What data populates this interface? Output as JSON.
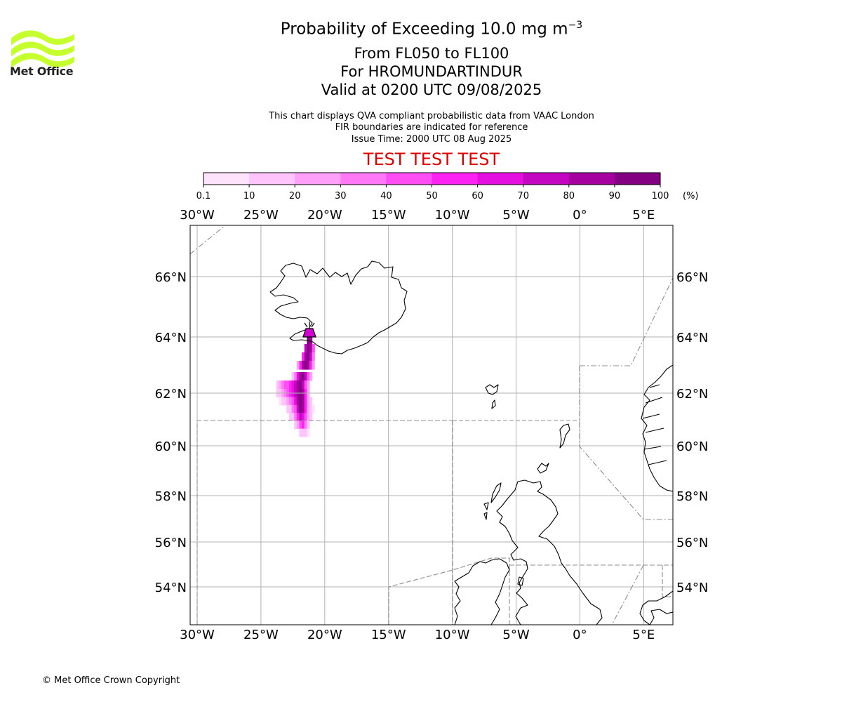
{
  "logo": {
    "text": "Met Office",
    "accent_color": "#c6ff2e"
  },
  "title": {
    "prefix": "Probability of Exceeding 10.0 mg m",
    "exponent": "−3"
  },
  "subtitle_lines": [
    "From FL050 to FL100",
    "For HROMUNDARTINDUR",
    "Valid at 0200 UTC 09/08/2025"
  ],
  "info_lines": [
    "This chart displays QVA compliant probabilistic data from VAAC London",
    "FIR boundaries are indicated for reference",
    "Issue Time: 2000 UTC 08 Aug 2025"
  ],
  "test_banner": "TEST TEST TEST",
  "copyright": "© Met Office Crown Copyright",
  "colorbar": {
    "ticks": [
      "0.1",
      "10",
      "20",
      "30",
      "40",
      "50",
      "60",
      "70",
      "80",
      "90",
      "100"
    ],
    "unit": "(%)",
    "colors": [
      "#ffe3fd",
      "#ffc4fb",
      "#ffa0f8",
      "#ff78f6",
      "#ff4df4",
      "#fb22f2",
      "#e40fe0",
      "#c405c1",
      "#a5009f",
      "#840083"
    ]
  },
  "map": {
    "lon_labels": [
      "30°W",
      "25°W",
      "20°W",
      "15°W",
      "10°W",
      "5°W",
      "0°",
      "5°E"
    ],
    "lat_labels": [
      "66°N",
      "64°N",
      "62°N",
      "60°N",
      "58°N",
      "56°N",
      "54°N"
    ],
    "volcano": "HROMUNDARTINDUR"
  },
  "chart_data": {
    "type": "heatmap",
    "title": "Probability of Exceeding 10.0 mg m−3",
    "legend_unit": "(%)",
    "legend_bins": [
      0.1,
      10,
      20,
      30,
      40,
      50,
      60,
      70,
      80,
      90,
      100
    ],
    "longitude_ticks": [
      -30,
      -25,
      -20,
      -15,
      -10,
      -5,
      0,
      5
    ],
    "latitude_ticks": [
      66,
      64,
      62,
      60,
      58,
      56,
      54
    ],
    "grid": true,
    "plume_cells": [
      {
        "lon": -21.3,
        "lat": 63.9,
        "p": 95
      },
      {
        "lon": -21.1,
        "lat": 63.9,
        "p": 85
      },
      {
        "lon": -21.5,
        "lat": 63.6,
        "p": 75
      },
      {
        "lon": -21.3,
        "lat": 63.6,
        "p": 95
      },
      {
        "lon": -21.1,
        "lat": 63.6,
        "p": 85
      },
      {
        "lon": -20.9,
        "lat": 63.6,
        "p": 40
      },
      {
        "lon": -21.7,
        "lat": 63.3,
        "p": 55
      },
      {
        "lon": -21.5,
        "lat": 63.3,
        "p": 85
      },
      {
        "lon": -21.3,
        "lat": 63.3,
        "p": 95
      },
      {
        "lon": -21.1,
        "lat": 63.3,
        "p": 75
      },
      {
        "lon": -20.9,
        "lat": 63.3,
        "p": 35
      },
      {
        "lon": -22.1,
        "lat": 63.0,
        "p": 25
      },
      {
        "lon": -21.9,
        "lat": 63.0,
        "p": 55
      },
      {
        "lon": -21.7,
        "lat": 63.0,
        "p": 85
      },
      {
        "lon": -21.5,
        "lat": 63.0,
        "p": 95
      },
      {
        "lon": -21.3,
        "lat": 63.0,
        "p": 85
      },
      {
        "lon": -21.1,
        "lat": 63.0,
        "p": 55
      },
      {
        "lon": -20.9,
        "lat": 63.0,
        "p": 25
      },
      {
        "lon": -22.5,
        "lat": 62.6,
        "p": 15
      },
      {
        "lon": -22.3,
        "lat": 62.6,
        "p": 35
      },
      {
        "lon": -22.1,
        "lat": 62.6,
        "p": 65
      },
      {
        "lon": -21.9,
        "lat": 62.6,
        "p": 85
      },
      {
        "lon": -21.7,
        "lat": 62.6,
        "p": 95
      },
      {
        "lon": -21.5,
        "lat": 62.6,
        "p": 75
      },
      {
        "lon": -21.3,
        "lat": 62.6,
        "p": 45
      },
      {
        "lon": -21.1,
        "lat": 62.6,
        "p": 20
      },
      {
        "lon": -23.7,
        "lat": 62.3,
        "p": 15
      },
      {
        "lon": -23.5,
        "lat": 62.3,
        "p": 20
      },
      {
        "lon": -23.3,
        "lat": 62.3,
        "p": 30
      },
      {
        "lon": -23.1,
        "lat": 62.3,
        "p": 40
      },
      {
        "lon": -22.9,
        "lat": 62.3,
        "p": 45
      },
      {
        "lon": -22.7,
        "lat": 62.3,
        "p": 55
      },
      {
        "lon": -22.5,
        "lat": 62.3,
        "p": 65
      },
      {
        "lon": -22.3,
        "lat": 62.3,
        "p": 75
      },
      {
        "lon": -22.1,
        "lat": 62.3,
        "p": 85
      },
      {
        "lon": -21.9,
        "lat": 62.3,
        "p": 95
      },
      {
        "lon": -21.7,
        "lat": 62.3,
        "p": 75
      },
      {
        "lon": -21.5,
        "lat": 62.3,
        "p": 45
      },
      {
        "lon": -21.3,
        "lat": 62.3,
        "p": 20
      },
      {
        "lon": -23.7,
        "lat": 62.0,
        "p": 10
      },
      {
        "lon": -23.5,
        "lat": 62.0,
        "p": 15
      },
      {
        "lon": -23.3,
        "lat": 62.0,
        "p": 20
      },
      {
        "lon": -23.1,
        "lat": 62.0,
        "p": 30
      },
      {
        "lon": -22.9,
        "lat": 62.0,
        "p": 40
      },
      {
        "lon": -22.7,
        "lat": 62.0,
        "p": 55
      },
      {
        "lon": -22.5,
        "lat": 62.0,
        "p": 65
      },
      {
        "lon": -22.3,
        "lat": 62.0,
        "p": 75
      },
      {
        "lon": -22.1,
        "lat": 62.0,
        "p": 85
      },
      {
        "lon": -21.9,
        "lat": 62.0,
        "p": 95
      },
      {
        "lon": -21.7,
        "lat": 62.0,
        "p": 85
      },
      {
        "lon": -21.5,
        "lat": 62.0,
        "p": 55
      },
      {
        "lon": -21.3,
        "lat": 62.0,
        "p": 25
      },
      {
        "lon": -23.5,
        "lat": 61.7,
        "p": 8
      },
      {
        "lon": -23.3,
        "lat": 61.7,
        "p": 12
      },
      {
        "lon": -23.1,
        "lat": 61.7,
        "p": 15
      },
      {
        "lon": -22.9,
        "lat": 61.7,
        "p": 25
      },
      {
        "lon": -22.7,
        "lat": 61.7,
        "p": 35
      },
      {
        "lon": -22.5,
        "lat": 61.7,
        "p": 45
      },
      {
        "lon": -22.3,
        "lat": 61.7,
        "p": 65
      },
      {
        "lon": -22.1,
        "lat": 61.7,
        "p": 85
      },
      {
        "lon": -21.9,
        "lat": 61.7,
        "p": 95
      },
      {
        "lon": -21.7,
        "lat": 61.7,
        "p": 85
      },
      {
        "lon": -21.5,
        "lat": 61.7,
        "p": 55
      },
      {
        "lon": -21.3,
        "lat": 61.7,
        "p": 25
      },
      {
        "lon": -21.1,
        "lat": 61.7,
        "p": 12
      },
      {
        "lon": -22.9,
        "lat": 61.4,
        "p": 12
      },
      {
        "lon": -22.7,
        "lat": 61.4,
        "p": 18
      },
      {
        "lon": -22.5,
        "lat": 61.4,
        "p": 30
      },
      {
        "lon": -22.3,
        "lat": 61.4,
        "p": 45
      },
      {
        "lon": -22.1,
        "lat": 61.4,
        "p": 75
      },
      {
        "lon": -21.9,
        "lat": 61.4,
        "p": 95
      },
      {
        "lon": -21.7,
        "lat": 61.4,
        "p": 85
      },
      {
        "lon": -21.5,
        "lat": 61.4,
        "p": 55
      },
      {
        "lon": -21.3,
        "lat": 61.4,
        "p": 25
      },
      {
        "lon": -21.1,
        "lat": 61.4,
        "p": 12
      },
      {
        "lon": -20.9,
        "lat": 61.4,
        "p": 8
      },
      {
        "lon": -22.7,
        "lat": 61.1,
        "p": 10
      },
      {
        "lon": -22.5,
        "lat": 61.1,
        "p": 18
      },
      {
        "lon": -22.3,
        "lat": 61.1,
        "p": 30
      },
      {
        "lon": -22.1,
        "lat": 61.1,
        "p": 55
      },
      {
        "lon": -21.9,
        "lat": 61.1,
        "p": 75
      },
      {
        "lon": -21.7,
        "lat": 61.1,
        "p": 65
      },
      {
        "lon": -21.5,
        "lat": 61.1,
        "p": 45
      },
      {
        "lon": -21.3,
        "lat": 61.1,
        "p": 25
      },
      {
        "lon": -21.1,
        "lat": 61.1,
        "p": 12
      },
      {
        "lon": -22.3,
        "lat": 60.8,
        "p": 10
      },
      {
        "lon": -22.1,
        "lat": 60.8,
        "p": 25
      },
      {
        "lon": -21.9,
        "lat": 60.8,
        "p": 45
      },
      {
        "lon": -21.7,
        "lat": 60.8,
        "p": 55
      },
      {
        "lon": -21.5,
        "lat": 60.8,
        "p": 35
      },
      {
        "lon": -21.3,
        "lat": 60.8,
        "p": 15
      },
      {
        "lon": -21.9,
        "lat": 60.5,
        "p": 10
      },
      {
        "lon": -21.7,
        "lat": 60.5,
        "p": 15
      },
      {
        "lon": -21.5,
        "lat": 60.5,
        "p": 12
      },
      {
        "lon": -21.3,
        "lat": 60.5,
        "p": 8
      }
    ]
  }
}
